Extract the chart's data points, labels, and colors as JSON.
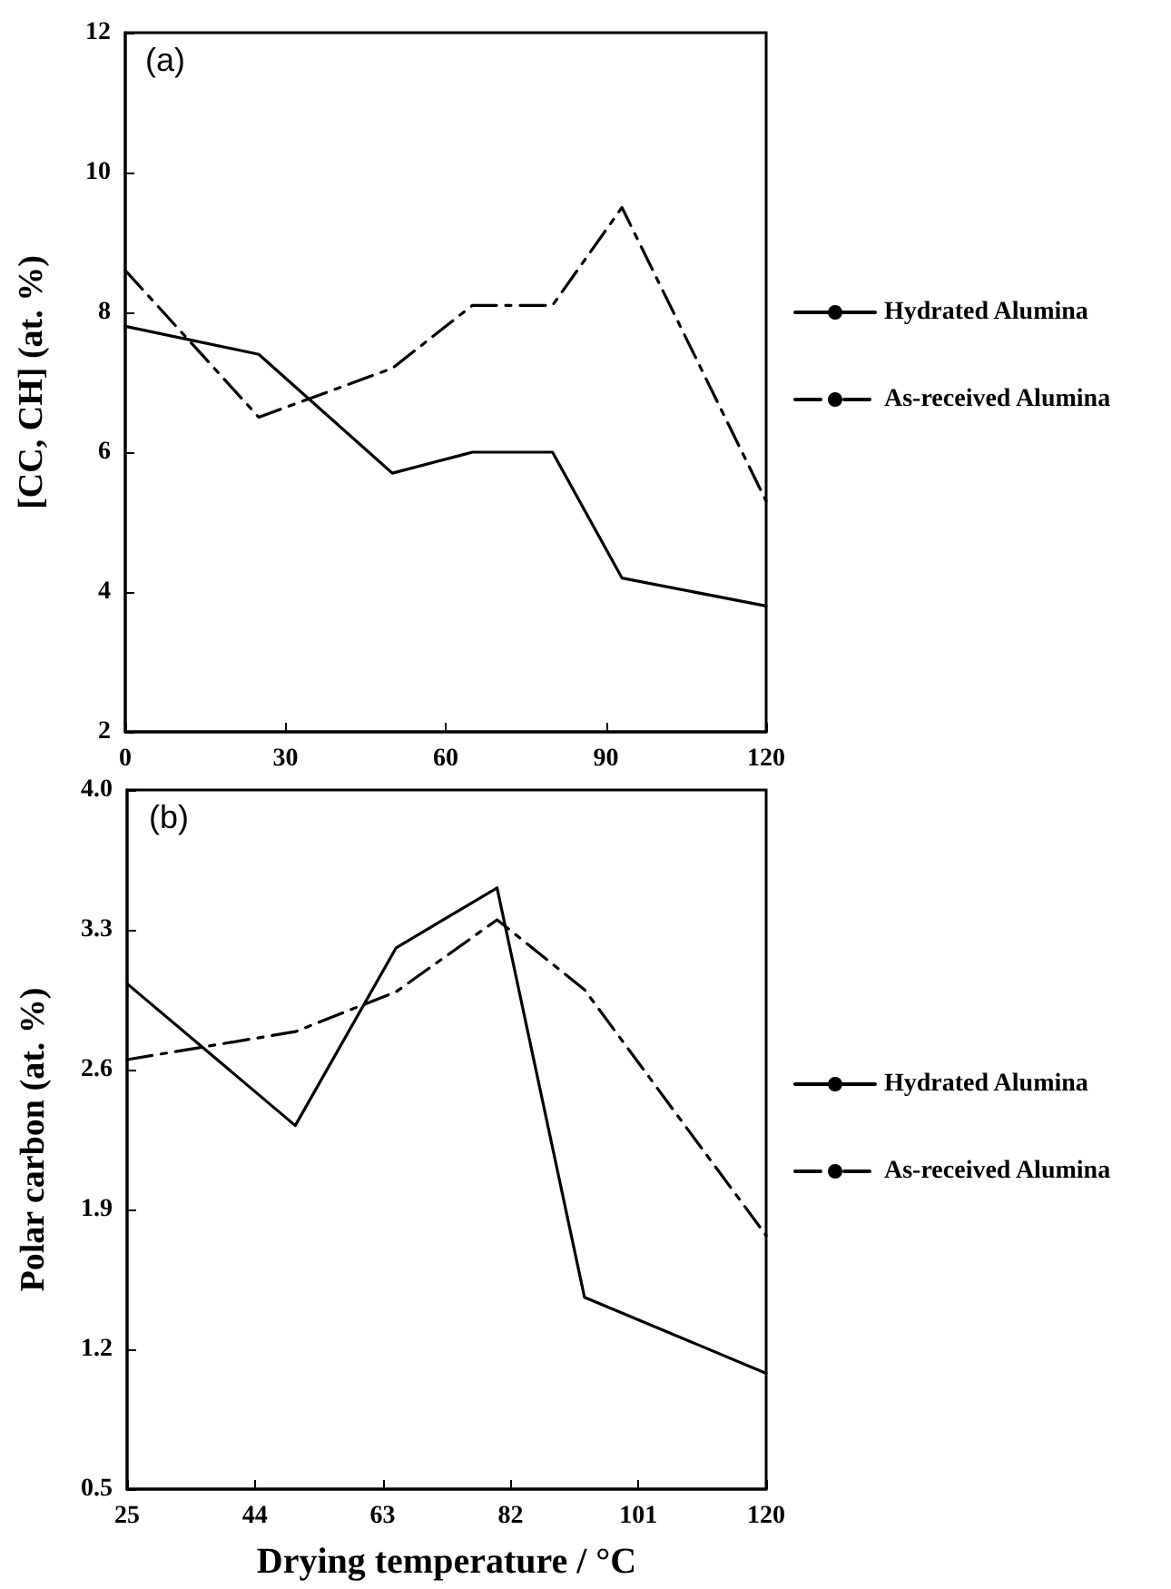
{
  "chart_data": [
    {
      "type": "line",
      "ylabel": "[CC, CH] (at. %)",
      "annotations": [
        "(a)"
      ],
      "x": [
        0,
        25,
        50,
        65,
        80,
        93,
        120
      ],
      "xlim": [
        0,
        120
      ],
      "xticks": [
        0,
        30,
        60,
        90,
        120
      ],
      "ylim": [
        2,
        12
      ],
      "yticks": [
        2,
        4,
        6,
        8,
        10,
        12
      ],
      "grid": false,
      "legend": "right",
      "marker": "none",
      "series": [
        {
          "name": "Hydrated Alumina",
          "color": "#000000",
          "line_style": "solid",
          "values": [
            7.8,
            7.4,
            5.7,
            6.0,
            6.0,
            4.2,
            3.8
          ]
        },
        {
          "name": "As-received Alumina",
          "color": "#000000",
          "line_style": "dashed",
          "values": [
            8.6,
            6.5,
            7.2,
            8.1,
            8.1,
            9.5,
            5.3
          ]
        }
      ]
    },
    {
      "type": "line",
      "xlabel": "Drying temperature / °C",
      "ylabel": "Polar carbon (at. %)",
      "annotations": [
        "(b)"
      ],
      "x": [
        25,
        50,
        65,
        80,
        93,
        120
      ],
      "xlim": [
        25,
        120
      ],
      "xticks": [
        25,
        44,
        63,
        82,
        101,
        120
      ],
      "ylim": [
        0.5,
        4
      ],
      "yticks": [
        0.5,
        1.2,
        1.9,
        2.6,
        3.3,
        {
          "value": 4,
          "label": "4.0"
        }
      ],
      "grid": false,
      "legend": "right",
      "marker": "none",
      "series": [
        {
          "name": "Hydrated Alumina",
          "color": "#000000",
          "line_style": "solid",
          "values": [
            3.03,
            2.32,
            3.21,
            3.51,
            1.46,
            1.08
          ]
        },
        {
          "name": "As-received Alumina",
          "color": "#000000",
          "line_style": "dashed",
          "values": [
            2.65,
            2.79,
            2.99,
            3.35,
            3.0,
            1.77
          ]
        }
      ]
    }
  ]
}
